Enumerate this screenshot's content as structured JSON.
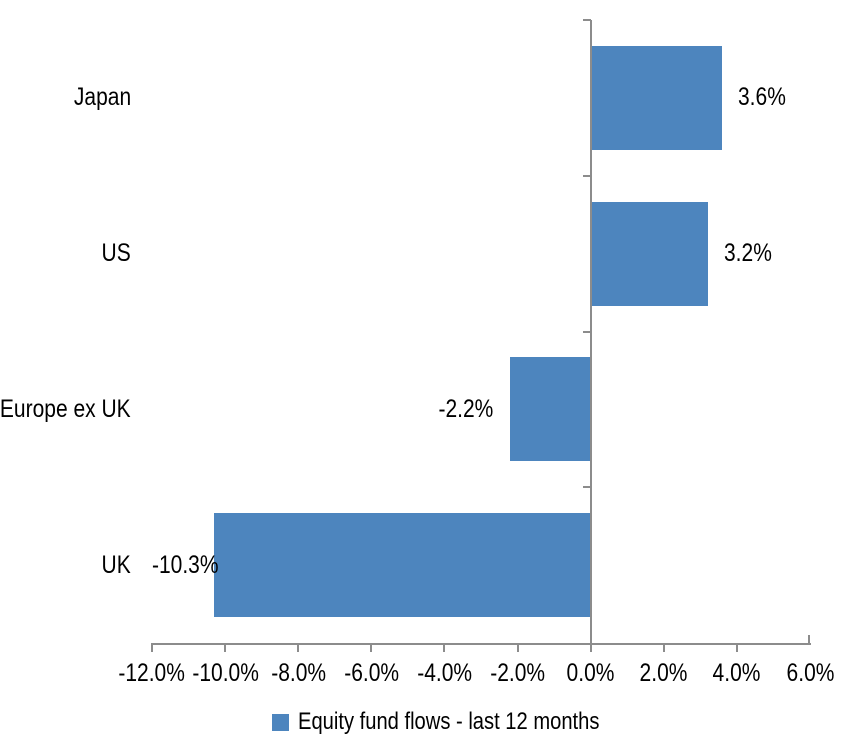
{
  "chart_data": {
    "type": "bar",
    "orientation": "horizontal",
    "categories": [
      "Japan",
      "US",
      "Europe ex UK",
      "UK"
    ],
    "series": [
      {
        "name": "Equity fund flows - last 12 months",
        "values": [
          3.6,
          3.2,
          -2.2,
          -10.3
        ]
      }
    ],
    "data_labels": [
      "3.6%",
      "3.2%",
      "-2.2%",
      "-10.3%"
    ],
    "x_axis": {
      "min": -12,
      "max": 6,
      "tick_step": 2,
      "ticks": [
        {
          "value": -12,
          "label": "-12.0%"
        },
        {
          "value": -10,
          "label": "-10.0%"
        },
        {
          "value": -8,
          "label": "-8.0%"
        },
        {
          "value": -6,
          "label": "-6.0%"
        },
        {
          "value": -4,
          "label": "-4.0%"
        },
        {
          "value": -2,
          "label": "-2.0%"
        },
        {
          "value": 0,
          "label": "0.0%"
        },
        {
          "value": 2,
          "label": "2.0%"
        },
        {
          "value": 4,
          "label": "4.0%"
        },
        {
          "value": 6,
          "label": "6.0%"
        }
      ]
    },
    "legend": {
      "position": "bottom",
      "label": "Equity fund flows - last 12 months"
    },
    "grid": "off",
    "colors": {
      "bar": "#4D85BE",
      "axis": "#8C8C8C",
      "text": "#000000",
      "background": "#FFFFFF"
    }
  }
}
